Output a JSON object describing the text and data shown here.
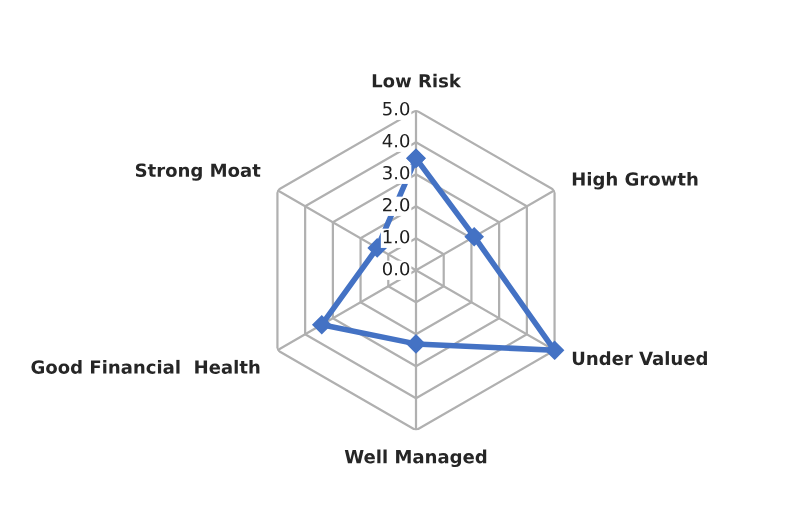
{
  "chart_data": {
    "type": "radar",
    "categories": [
      "Low Risk",
      "High Growth",
      "Under Valued",
      "Well Managed",
      "Good Financial  Health",
      "Strong Moat"
    ],
    "series": [
      {
        "color": "#4472c4",
        "values": [
          3.5,
          2.1,
          5.0,
          2.3,
          3.4,
          1.4
        ]
      }
    ],
    "ylim": [
      0,
      5
    ],
    "yticks": [
      {
        "value": 0,
        "label": "0.0"
      },
      {
        "value": 1,
        "label": "1.0"
      },
      {
        "value": 2,
        "label": "2.0"
      },
      {
        "value": 3,
        "label": "3.0"
      },
      {
        "value": 4,
        "label": "4.0"
      },
      {
        "value": 5,
        "label": "5.0"
      }
    ],
    "grid": true,
    "marker": "diamond",
    "line_style": "solid"
  }
}
